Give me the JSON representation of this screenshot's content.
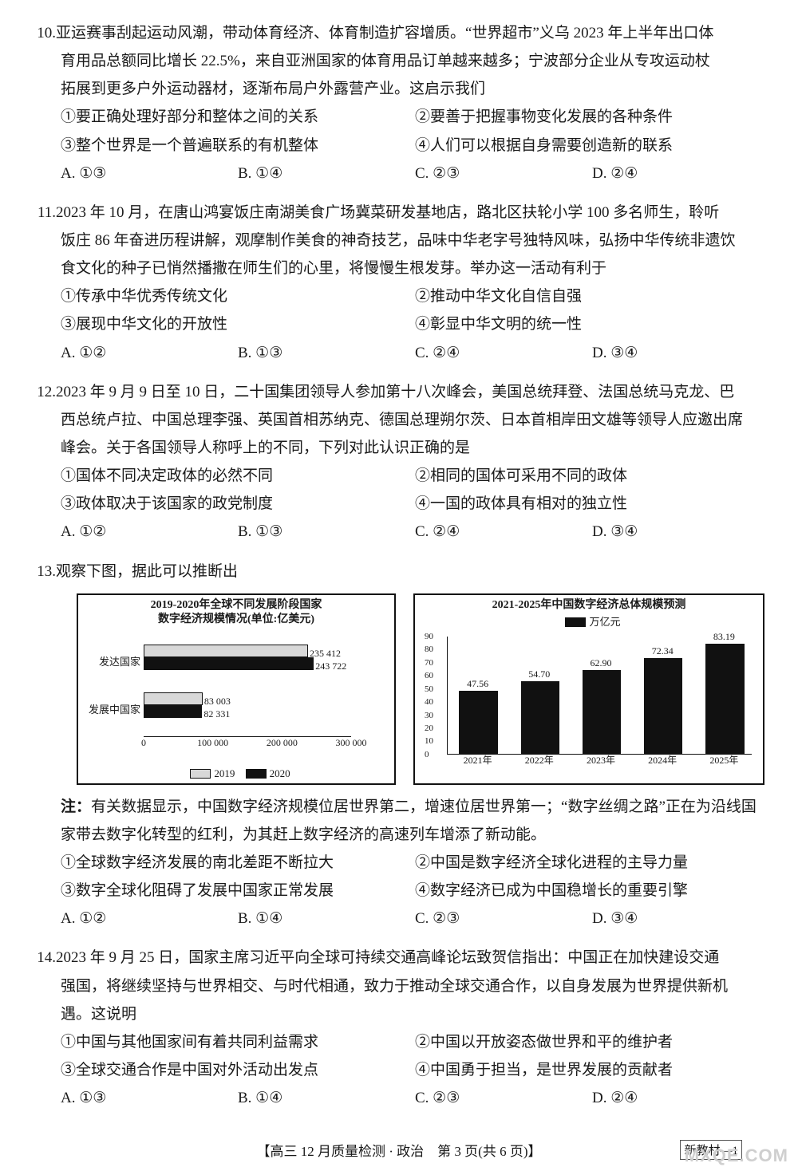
{
  "questions": {
    "q10": {
      "num": "10.",
      "stem_first": "亚运赛事刮起运动风潮，带动体育经济、体育制造扩容增质。“世界超市”义乌 2023 年上半年出口体",
      "stem_rest": [
        "育用品总额同比增长 22.5%，来自亚洲国家的体育用品订单越来越多；宁波部分企业从专攻运动杖",
        "拓展到更多户外运动器材，逐渐布局户外露营产业。这启示我们"
      ],
      "statements": [
        "①要正确处理好部分和整体之间的关系",
        "②要善于把握事物变化发展的各种条件",
        "③整个世界是一个普遍联系的有机整体",
        "④人们可以根据自身需要创造新的联系"
      ],
      "options": [
        "A. ①③",
        "B. ①④",
        "C. ②③",
        "D. ②④"
      ]
    },
    "q11": {
      "num": "11.",
      "stem_first": "2023 年 10 月，在唐山鸿宴饭庄南湖美食广场冀菜研发基地店，路北区扶轮小学 100 多名师生，聆听",
      "stem_rest": [
        "饭庄 86 年奋进历程讲解，观摩制作美食的神奇技艺，品味中华老字号独特风味，弘扬中华传统非遗饮",
        "食文化的种子已悄然播撒在师生们的心里，将慢慢生根发芽。举办这一活动有利于"
      ],
      "statements": [
        "①传承中华优秀传统文化",
        "②推动中华文化自信自强",
        "③展现中华文化的开放性",
        "④彰显中华文明的统一性"
      ],
      "options": [
        "A. ①②",
        "B. ①③",
        "C. ②④",
        "D. ③④"
      ]
    },
    "q12": {
      "num": "12.",
      "stem_first": "2023 年 9 月 9 日至 10 日，二十国集团领导人参加第十八次峰会，美国总统拜登、法国总统马克龙、巴",
      "stem_rest": [
        "西总统卢拉、中国总理李强、英国首相苏纳克、德国总理朔尔茨、日本首相岸田文雄等领导人应邀出席",
        "峰会。关于各国领导人称呼上的不同，下列对此认识正确的是"
      ],
      "statements": [
        "①国体不同决定政体的必然不同",
        "②相同的国体可采用不同的政体",
        "③政体取决于该国家的政党制度",
        "④一国的政体具有相对的独立性"
      ],
      "options": [
        "A. ①②",
        "B. ①③",
        "C. ②④",
        "D. ③④"
      ]
    },
    "q13": {
      "num": "13.",
      "stem_first": "观察下图，据此可以推断出",
      "note_label": "注：",
      "note_text": "有关数据显示，中国数字经济规模位居世界第二，增速位居世界第一；“数字丝绸之路”正在为沿线国家带去数字化转型的红利，为其赶上数字经济的高速列车增添了新动能。",
      "statements": [
        "①全球数字经济发展的南北差距不断拉大",
        "②中国是数字经济全球化进程的主导力量",
        "③数字全球化阻碍了发展中国家正常发展",
        "④数字经济已成为中国稳增长的重要引擎"
      ],
      "options": [
        "A. ①②",
        "B. ①④",
        "C. ②③",
        "D. ③④"
      ]
    },
    "q14": {
      "num": "14.",
      "stem_first": "2023 年 9 月 25 日，国家主席习近平向全球可持续交通高峰论坛致贺信指出：中国正在加快建设交通",
      "stem_rest": [
        "强国，将继续坚持与世界相交、与时代相通，致力于推动全球交通合作，以自身发展为世界提供新机",
        "遇。这说明"
      ],
      "statements": [
        "①中国与其他国家间有着共同利益需求",
        "②中国以开放姿态做世界和平的维护者",
        "③全球交通合作是中国对外活动出发点",
        "④中国勇于担当，是世界发展的贡献者"
      ],
      "options": [
        "A. ①③",
        "B. ①④",
        "C. ②③",
        "D. ②④"
      ]
    }
  },
  "chart_left": {
    "type": "grouped_horizontal_bar",
    "title_l1": "2019-2020年全球不同发展阶段国家",
    "title_l2": "数字经济规模情况(单位:亿美元)",
    "categories": [
      "发达国家",
      "发展中国家"
    ],
    "series": [
      {
        "name": "2019",
        "color": "#d8d8d8",
        "values": [
          235412,
          83003
        ]
      },
      {
        "name": "2020",
        "color": "#111111",
        "values": [
          243722,
          82331
        ]
      }
    ],
    "x_ticks": [
      0,
      100000,
      200000,
      300000
    ],
    "x_tick_labels": [
      "0",
      "100 000",
      "200 000",
      "300 000"
    ],
    "x_max": 300000,
    "legend_labels": [
      "2019",
      "2020"
    ],
    "axis_color": "#111111",
    "border_color": "#111111",
    "bg": "#ffffff",
    "font_size_title": 14,
    "font_size_labels": 12
  },
  "chart_right": {
    "type": "bar",
    "title": "2021-2025年中国数字经济总体规模预测",
    "legend": "万亿元",
    "x_labels": [
      "2021年",
      "2022年",
      "2023年",
      "2024年",
      "2025年"
    ],
    "values": [
      47.56,
      54.7,
      62.9,
      72.34,
      83.19
    ],
    "bar_color": "#111111",
    "y_ticks": [
      0,
      10,
      20,
      30,
      40,
      50,
      60,
      70,
      80,
      90
    ],
    "y_max": 90,
    "axis_color": "#111111",
    "border_color": "#111111",
    "bg": "#ffffff",
    "font_size_title": 14,
    "font_size_labels": 12
  },
  "footer": {
    "text": "【高三 12 月质量检测 · 政治　第 3 页(共 6 页)】",
    "box": "新教材—1",
    "watermark": "MXQE.COM"
  }
}
